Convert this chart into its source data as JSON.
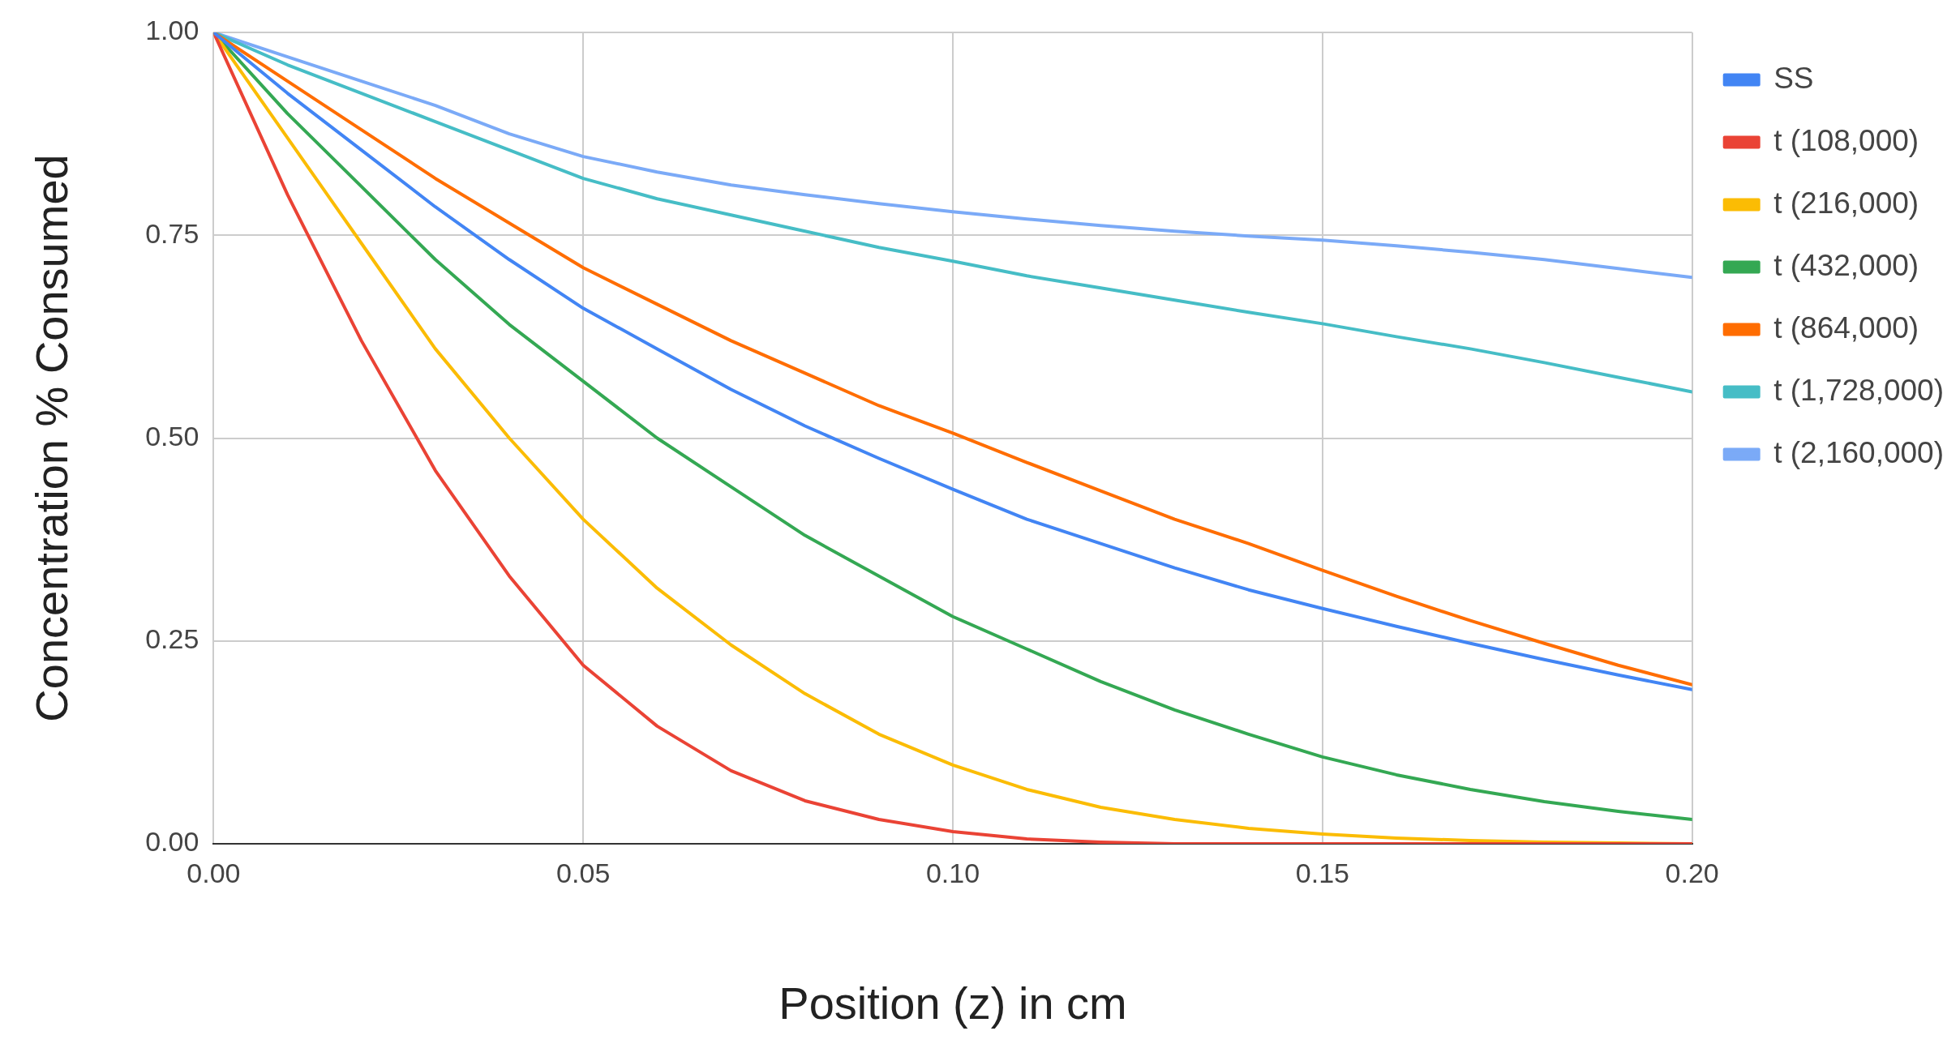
{
  "chart_data": {
    "type": "line",
    "xlabel": "Position (z) in cm",
    "ylabel": "Concentration % Consumed",
    "x": [
      0,
      0.01,
      0.02,
      0.03,
      0.04,
      0.05,
      0.06,
      0.07,
      0.08,
      0.09,
      0.1,
      0.11,
      0.12,
      0.13,
      0.14,
      0.15,
      0.16,
      0.17,
      0.18,
      0.19,
      0.2
    ],
    "series": [
      {
        "name": "SS",
        "color": "#4285f4",
        "values": [
          1,
          0.925,
          0.855,
          0.785,
          0.72,
          0.66,
          0.61,
          0.56,
          0.515,
          0.475,
          0.437,
          0.4,
          0.37,
          0.34,
          0.313,
          0.29,
          0.268,
          0.247,
          0.227,
          0.208,
          0.19
        ]
      },
      {
        "name": "t (108,000)",
        "color": "#ea4335",
        "values": [
          1,
          0.8,
          0.62,
          0.46,
          0.33,
          0.22,
          0.145,
          0.09,
          0.053,
          0.03,
          0.015,
          0.006,
          0.002,
          0,
          0,
          0,
          0,
          0,
          0,
          0,
          0
        ]
      },
      {
        "name": "t (216,000)",
        "color": "#fbbc04",
        "values": [
          1,
          0.87,
          0.74,
          0.61,
          0.5,
          0.4,
          0.315,
          0.245,
          0.185,
          0.135,
          0.097,
          0.067,
          0.045,
          0.03,
          0.019,
          0.012,
          0.007,
          0.004,
          0.002,
          0.001,
          0
        ]
      },
      {
        "name": "t (432,000)",
        "color": "#34a853",
        "values": [
          1,
          0.9,
          0.81,
          0.72,
          0.64,
          0.57,
          0.5,
          0.44,
          0.38,
          0.33,
          0.28,
          0.24,
          0.2,
          0.165,
          0.135,
          0.107,
          0.085,
          0.067,
          0.052,
          0.04,
          0.03
        ]
      },
      {
        "name": "t (864,000)",
        "color": "#ff6d01",
        "values": [
          1,
          0.94,
          0.88,
          0.82,
          0.765,
          0.71,
          0.665,
          0.62,
          0.58,
          0.54,
          0.506,
          0.47,
          0.435,
          0.4,
          0.37,
          0.337,
          0.305,
          0.275,
          0.247,
          0.22,
          0.196
        ]
      },
      {
        "name": "t (1,728,000)",
        "color": "#46bdc6",
        "values": [
          1,
          0.96,
          0.925,
          0.89,
          0.855,
          0.82,
          0.795,
          0.775,
          0.755,
          0.735,
          0.718,
          0.7,
          0.685,
          0.67,
          0.655,
          0.641,
          0.625,
          0.61,
          0.593,
          0.575,
          0.557
        ]
      },
      {
        "name": "t (2,160,000)",
        "color": "#7baaf7",
        "values": [
          1,
          0.97,
          0.94,
          0.91,
          0.875,
          0.847,
          0.828,
          0.812,
          0.8,
          0.789,
          0.779,
          0.77,
          0.762,
          0.755,
          0.749,
          0.744,
          0.737,
          0.729,
          0.72,
          0.709,
          0.698
        ]
      }
    ],
    "xlim": [
      0,
      0.2
    ],
    "xticks": [
      {
        "value": 0,
        "label": "0.00"
      },
      {
        "value": 0.05,
        "label": "0.05"
      },
      {
        "value": 0.1,
        "label": "0.10"
      },
      {
        "value": 0.15,
        "label": "0.15"
      },
      {
        "value": 0.2,
        "label": "0.20"
      }
    ],
    "ylim": [
      0,
      1
    ],
    "yticks": [
      {
        "value": 0,
        "label": "0.00"
      },
      {
        "value": 0.25,
        "label": "0.25"
      },
      {
        "value": 0.5,
        "label": "0.50"
      },
      {
        "value": 0.75,
        "label": "0.75"
      },
      {
        "value": 1,
        "label": "1.00"
      }
    ],
    "grid": true,
    "legend": "right",
    "marker": "none",
    "line_style": "solid"
  }
}
